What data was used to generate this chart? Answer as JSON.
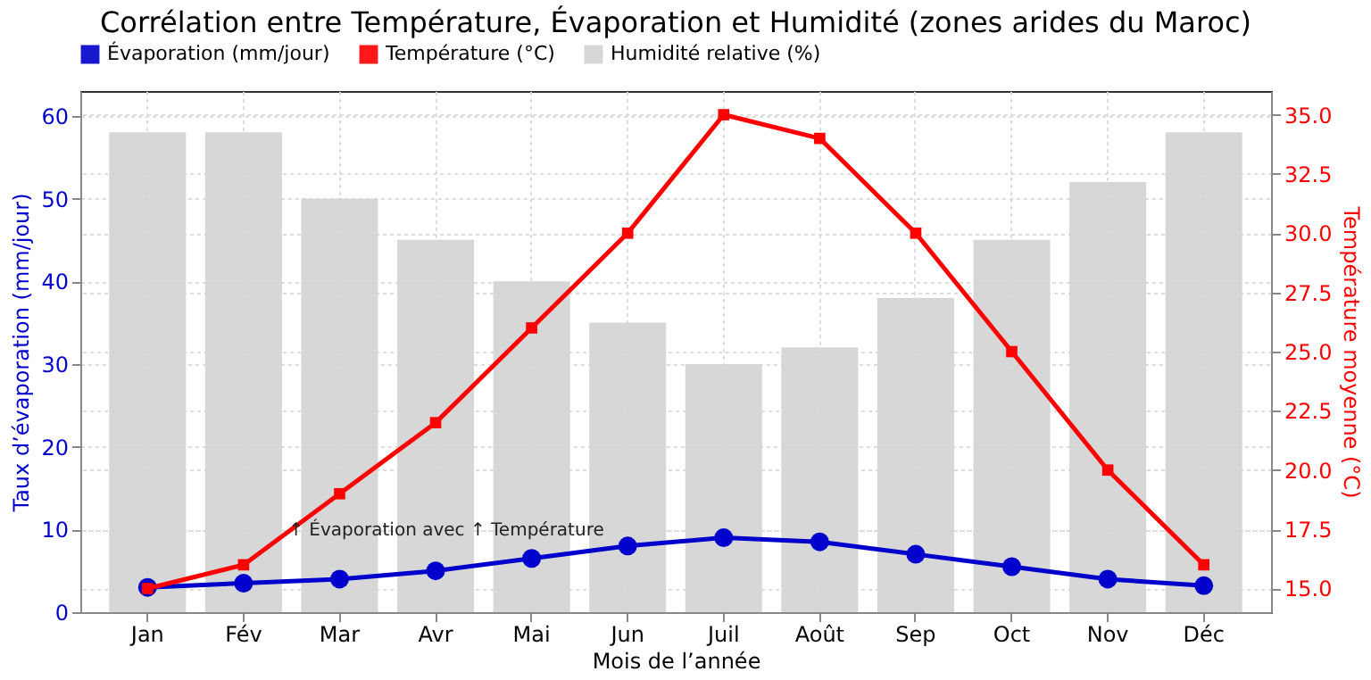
{
  "chart_data": {
    "type": "bar",
    "title": "Corrélation entre Température, Évaporation et Humidité (zones arides du Maroc)",
    "xlabel": "Mois de l’année",
    "ylabel": "Taux d’évaporation (mm/jour)",
    "y2label": "Température moyenne (°C)",
    "categories": [
      "Jan",
      "Fév",
      "Mar",
      "Avr",
      "Mai",
      "Jun",
      "Juil",
      "Août",
      "Sep",
      "Oct",
      "Nov",
      "Déc"
    ],
    "series": [
      {
        "name": "Évaporation (mm/jour)",
        "type": "line",
        "color": "#0000cc",
        "marker": "circle",
        "values": [
          3,
          3.5,
          4,
          5,
          6.5,
          8,
          9,
          8.5,
          7,
          5.5,
          4,
          3.2
        ]
      },
      {
        "name": "Température (°C)",
        "type": "line",
        "axis": "y2",
        "color": "#ff0000",
        "marker": "square",
        "values": [
          15,
          16,
          19,
          22,
          26,
          30,
          35,
          34,
          30,
          25,
          20,
          16
        ]
      },
      {
        "name": "Humidité relative (%)",
        "color": "#d3d3d3",
        "values": [
          58,
          58,
          50,
          45,
          40,
          35,
          30,
          32,
          38,
          45,
          52,
          58
        ]
      }
    ],
    "ylim": [
      0,
      63
    ],
    "yticks": [
      0,
      10,
      20,
      30,
      40,
      50,
      60
    ],
    "y2lim": [
      14,
      36
    ],
    "y2ticks": [
      {
        "value": 15,
        "label": "15.0"
      },
      17.5,
      {
        "value": 20,
        "label": "20.0"
      },
      22.5,
      {
        "value": 25,
        "label": "25.0"
      },
      27.5,
      {
        "value": 30,
        "label": "30.0"
      },
      32.5,
      {
        "value": 35,
        "label": "35.0"
      }
    ],
    "annotations": [
      "↑ Évaporation avec ↑ Température"
    ],
    "grid": true,
    "legend": "top left",
    "line_style": "solid"
  }
}
